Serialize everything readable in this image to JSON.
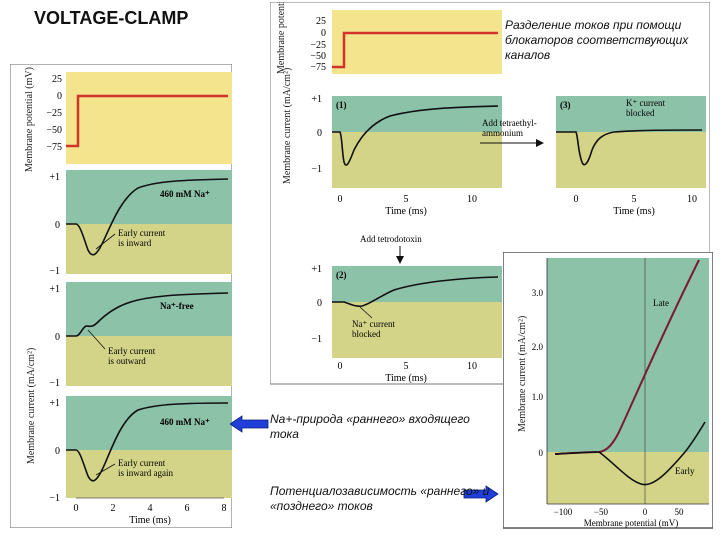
{
  "title": "VOLTAGE-CLAMP",
  "notes": {
    "separation": "Разделение токов при помощи блокаторов соответствующих каналов",
    "na_nature": "Na+-природа «раннего» входящего тока",
    "voltage_dependence": "Потенциалозависимость «раннего» и «позднего» токов"
  },
  "colors": {
    "yellow": "#f3e48d",
    "olive": "#d4d489",
    "teal": "#8cc2a8",
    "red": "#d2332a",
    "arrow_blue": "#1f3fd8",
    "late_curve": "#7a1a35"
  },
  "left_panel": {
    "voltage": {
      "ylabel": "Membrane potential (mV)",
      "ticks": [
        "25",
        "0",
        "−25",
        "−50",
        "−75"
      ]
    },
    "ylabel": "Membrane current (mA/cm²)",
    "traces": [
      {
        "label": "460 mM Na⁺",
        "annotation": [
          "Early current",
          "is inward"
        ],
        "top_tick": "+1",
        "mid_tick": "0",
        "bottom_tick": "−1"
      },
      {
        "label": "Na⁺-free",
        "annotation": [
          "Early current",
          "is outward"
        ],
        "top_tick": "+1",
        "mid_tick": "0",
        "bottom_tick": "−1"
      },
      {
        "label": "460 mM Na⁺",
        "annotation": [
          "Early current",
          "is inward again"
        ],
        "top_tick": "+1",
        "mid_tick": "0",
        "bottom_tick": "−1"
      }
    ],
    "xticks": [
      "0",
      "2",
      "4",
      "6",
      "8"
    ],
    "xlabel": "Time (ms)"
  },
  "top_panel": {
    "voltage": {
      "ylabel": "Membrane potential (mV)",
      "ticks": [
        "25",
        "0",
        "−25",
        "−50",
        "−75"
      ]
    },
    "ylabel": "Membrane current (mA/cm²)",
    "trace1": {
      "label": "(1)",
      "top_tick": "+1",
      "mid_tick": "0",
      "bottom_tick": "−1"
    },
    "add_tea": [
      "Add tetraethyl-",
      "ammonium"
    ],
    "trace3": {
      "label": "(3)",
      "annotation": [
        "K⁺ current",
        "blocked"
      ]
    },
    "xticks": [
      "0",
      "5",
      "10"
    ],
    "xlabel": "Time (ms)",
    "add_ttx": "Add tetrodotoxin",
    "trace2": {
      "label": "(2)",
      "annotation": [
        "Na⁺ current",
        "blocked"
      ],
      "top_tick": "+1",
      "mid_tick": "0",
      "bottom_tick": "−1"
    }
  },
  "iv_panel": {
    "ylabel": "Membrane current (mA/cm²)",
    "xlabel": "Membrane potential (mV)",
    "yticks": [
      "0",
      "1.0",
      "2.0",
      "3.0"
    ],
    "xticks": [
      "−100",
      "−50",
      "0",
      "50"
    ],
    "late_label": "Late",
    "early_label": "Early"
  }
}
